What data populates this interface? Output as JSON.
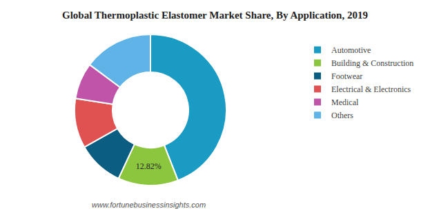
{
  "chart_data": {
    "type": "pie",
    "title": "Global Thermoplastic Elastomer Market Share, By Application, 2019",
    "categories": [
      "Automotive",
      "Building & Construction",
      "Footwear",
      "Electrical & Electronics",
      "Medical",
      "Others"
    ],
    "values": [
      44.1,
      12.82,
      9.9,
      10.6,
      7.8,
      14.78
    ],
    "value_labels": [
      null,
      "12.82%",
      null,
      null,
      null,
      null
    ],
    "colors": [
      "#1a9bc4",
      "#8cc63f",
      "#0b5e82",
      "#e05252",
      "#c054a8",
      "#5fb3e6"
    ],
    "data_labels": true,
    "legend": "right",
    "source": "www.fortunebusinessinsights.com"
  }
}
